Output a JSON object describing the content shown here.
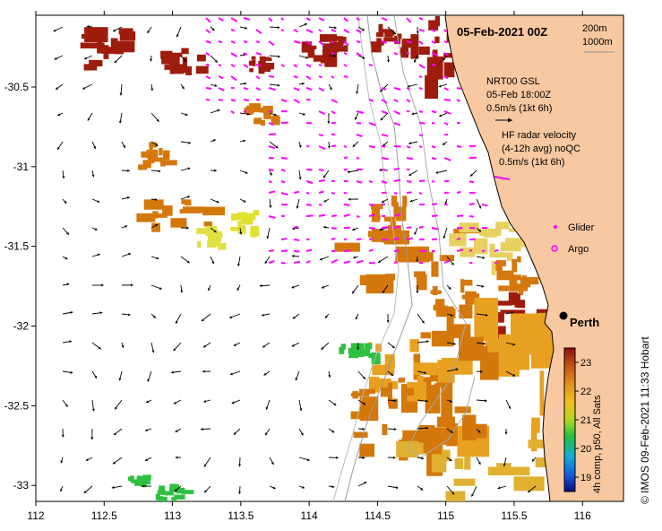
{
  "title": "05-Feb-2021 00Z",
  "depth_legend": [
    "200m",
    "1000m"
  ],
  "gsl_legend": [
    "NRT00 GSL",
    "05-Feb 18:00Z",
    "0.5m/s (1kt 6h)"
  ],
  "hf_legend": [
    "HF radar velocity",
    "(4-12h avg) noQC",
    "0.5m/s (1kt 6h)"
  ],
  "markers": {
    "glider": "Glider",
    "argo": "Argo"
  },
  "city": "Perth",
  "colorbar": {
    "caption": "4h comp, p50, All Sats",
    "ticks": [
      "23",
      "22",
      "21",
      "20",
      "19"
    ],
    "values": [
      23,
      22,
      21,
      20,
      19
    ]
  },
  "side_text": "© IMOS 09-Feb-2021 11:33 Hobart",
  "axes": {
    "x_labels": [
      "112",
      "112.5",
      "113",
      "113.5",
      "114",
      "114.5",
      "115",
      "115.5",
      "116"
    ],
    "x_values": [
      112,
      112.5,
      113,
      113.5,
      114,
      114.5,
      115,
      115.5,
      116
    ],
    "y_labels": [
      "-30.5",
      "-31",
      "-31.5",
      "-32",
      "-32.5",
      "-33"
    ],
    "y_values": [
      -30.5,
      -31,
      -31.5,
      -32,
      -32.5,
      -33
    ],
    "xlim": [
      112,
      116.3
    ],
    "ylim": [
      -33.1,
      -30.05
    ]
  },
  "colors": {
    "land": "#f8c8a0",
    "ocean": "#ffffff",
    "sst_warm": "#d4780c",
    "sst_hot": "#9e1c0c",
    "hf_vector": "#ff00ff",
    "gsl_vector": "#000000",
    "contour": "#aaaaaa"
  }
}
